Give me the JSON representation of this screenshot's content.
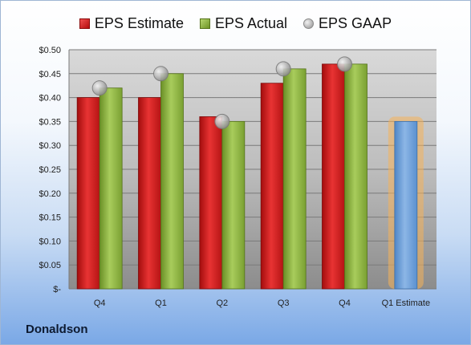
{
  "company": "Donaldson",
  "legend": {
    "estimate": "EPS Estimate",
    "actual": "EPS Actual",
    "gaap": "EPS GAAP"
  },
  "colors": {
    "estimate": "#c81a1a",
    "actual": "#8ab440",
    "gaap": "#a9a9a9",
    "forecast": "#6a9fd8",
    "forecast_glow": "#f5b25a"
  },
  "chart_data": {
    "type": "bar",
    "categories": [
      "Q4",
      "Q1",
      "Q2",
      "Q3",
      "Q4",
      "Q1 Estimate"
    ],
    "series": [
      {
        "name": "EPS Estimate",
        "values": [
          0.4,
          0.4,
          0.36,
          0.43,
          0.47,
          null
        ]
      },
      {
        "name": "EPS Actual",
        "values": [
          0.42,
          0.45,
          0.35,
          0.46,
          0.47,
          null
        ]
      },
      {
        "name": "EPS GAAP",
        "values": [
          0.42,
          0.45,
          0.35,
          0.46,
          0.47,
          null
        ]
      },
      {
        "name": "",
        "values": [
          null,
          null,
          null,
          null,
          null,
          0.35
        ]
      }
    ],
    "ylim": [
      0,
      0.5
    ],
    "yticks": [
      "$-",
      "$0.05",
      "$0.10",
      "$0.15",
      "$0.20",
      "$0.25",
      "$0.30",
      "$0.35",
      "$0.40",
      "$0.45",
      "$0.50"
    ],
    "grid": true,
    "legend_position": "top"
  }
}
